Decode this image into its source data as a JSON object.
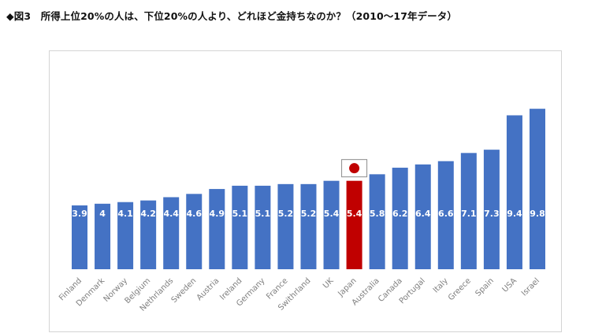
{
  "page_title": "◆図3　所得上位20%の人は、下位20%の人より、どれほど金持ちなのか？（2010〜17年データ）",
  "chart_data": {
    "type": "bar",
    "title": "所得上位20%の人は、下位20%の人より、どれほど金持ちなのか？",
    "categories": [
      "Finland",
      "Denmark",
      "Norway",
      "Belgium",
      "Nethrlands",
      "Sweden",
      "Austria",
      "Ireland",
      "Germany",
      "France",
      "Swithrland",
      "UK",
      "Japan",
      "Australia",
      "Canada",
      "Portugal",
      "Italy",
      "Greece",
      "Spain",
      "USA",
      "Israel"
    ],
    "values": [
      3.9,
      4,
      4.1,
      4.2,
      4.4,
      4.6,
      4.9,
      5.1,
      5.1,
      5.2,
      5.2,
      5.4,
      5.4,
      5.8,
      6.2,
      6.4,
      6.6,
      7.1,
      7.3,
      9.4,
      9.8
    ],
    "value_labels": [
      "3.9",
      "4",
      "4.1",
      "4.2",
      "4.4",
      "4.6",
      "4.9",
      "5.1",
      "5.1",
      "5.2",
      "5.2",
      "5.4",
      "5.4",
      "5.8",
      "6.2",
      "6.4",
      "6.6",
      "7.1",
      "7.3",
      "9.4",
      "9.8"
    ],
    "highlight": {
      "category": "Japan",
      "color": "#c00000",
      "marker": "japan-flag"
    },
    "bar_color": "#4472c4",
    "value_label_color": "#ffffff",
    "tick_label_color": "#7f7f7f",
    "xlabel": "",
    "ylabel": "",
    "ylim": [
      0,
      10.3
    ],
    "grid": false,
    "legend": "none"
  }
}
